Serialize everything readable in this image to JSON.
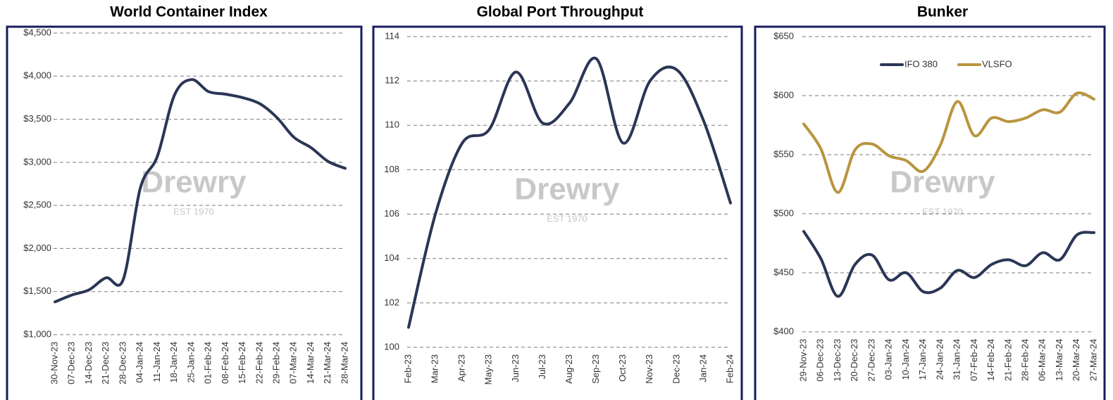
{
  "watermark": {
    "brand": "Drewry",
    "est": "EST 1970"
  },
  "chart_data": [
    {
      "type": "line",
      "title": "World Container Index",
      "categories": [
        "30-Nov-23",
        "07-Dec-23",
        "14-Dec-23",
        "21-Dec-23",
        "28-Dec-23",
        "04-Jan-24",
        "11-Jan-24",
        "18-Jan-24",
        "25-Jan-24",
        "01-Feb-24",
        "08-Feb-24",
        "15-Feb-24",
        "22-Feb-24",
        "29-Feb-24",
        "07-Mar-24",
        "14-Mar-24",
        "21-Mar-24",
        "28-Mar-24"
      ],
      "series": [
        {
          "name": "World Container Index",
          "color": "#2b3656",
          "values": [
            1380,
            1460,
            1520,
            1660,
            1640,
            2700,
            3070,
            3780,
            3960,
            3820,
            3790,
            3750,
            3680,
            3520,
            3290,
            3170,
            3010,
            2930
          ]
        }
      ],
      "ylim": [
        1000,
        4500
      ],
      "yticks": [
        {
          "value": 1000,
          "label": "$1,000"
        },
        {
          "value": 1500,
          "label": "$1,500"
        },
        {
          "value": 2000,
          "label": "$2,000"
        },
        {
          "value": 2500,
          "label": "$2,500"
        },
        {
          "value": 3000,
          "label": "$3,000"
        },
        {
          "value": 3500,
          "label": "$3,500"
        },
        {
          "value": 4000,
          "label": "$4,000"
        },
        {
          "value": 4500,
          "label": "$4,500"
        }
      ],
      "grid": true
    },
    {
      "type": "line",
      "title": "Global Port Throughput",
      "categories": [
        "Feb-23",
        "Mar-23",
        "Apr-23",
        "May-23",
        "Jun-23",
        "Jul-23",
        "Aug-23",
        "Sep-23",
        "Oct-23",
        "Nov-23",
        "Dec-23",
        "Jan-24",
        "Feb-24"
      ],
      "series": [
        {
          "name": "Global Port Throughput",
          "color": "#2b3656",
          "values": [
            100.9,
            106,
            109.2,
            109.8,
            112.4,
            110.1,
            111,
            113,
            109.2,
            112,
            112.5,
            110.2,
            106.5
          ]
        }
      ],
      "ylim": [
        100,
        114
      ],
      "yticks": [
        100,
        102,
        104,
        106,
        108,
        110,
        112,
        114
      ],
      "grid": true
    },
    {
      "type": "line",
      "title": "Bunker",
      "categories": [
        "29-Nov-23",
        "06-Dec-23",
        "13-Dec-23",
        "20-Dec-23",
        "27-Dec-23",
        "03-Jan-24",
        "10-Jan-24",
        "17-Jan-24",
        "24-Jan-24",
        "31-Jan-24",
        "07-Feb-24",
        "14-Feb-24",
        "21-Feb-24",
        "28-Feb-24",
        "06-Mar-24",
        "13-Mar-24",
        "20-Mar-24",
        "27-Mar-24"
      ],
      "series": [
        {
          "name": "IFO 380",
          "color": "#2b3656",
          "values": [
            485,
            462,
            430,
            457,
            465,
            444,
            450,
            434,
            437,
            452,
            446,
            457,
            461,
            456,
            467,
            461,
            482,
            484
          ]
        },
        {
          "name": "VLSFO",
          "color": "#b8953e",
          "values": [
            576,
            555,
            518,
            554,
            559,
            549,
            545,
            536,
            558,
            595,
            566,
            581,
            578,
            581,
            588,
            586,
            602,
            597
          ]
        }
      ],
      "ylim": [
        400,
        650
      ],
      "yticks": [
        {
          "value": 400,
          "label": "$400"
        },
        {
          "value": 450,
          "label": "$450"
        },
        {
          "value": 500,
          "label": "$500"
        },
        {
          "value": 550,
          "label": "$550"
        },
        {
          "value": 600,
          "label": "$600"
        },
        {
          "value": 650,
          "label": "$650"
        }
      ],
      "grid": true,
      "legend": "top"
    }
  ]
}
